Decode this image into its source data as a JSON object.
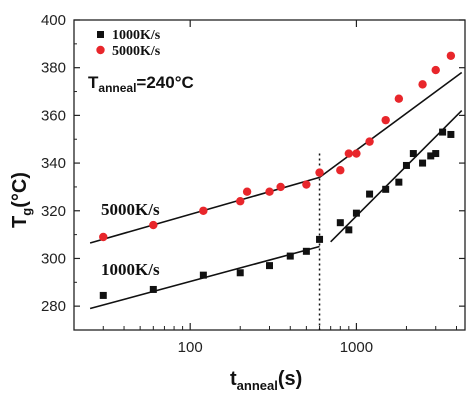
{
  "chart_data": {
    "type": "scatter",
    "x_scale": "log",
    "xlim": [
      20,
      4500
    ],
    "ylim": [
      270,
      400
    ],
    "x_ticks": [
      100,
      1000
    ],
    "x_tick_labels": [
      "100",
      "1000"
    ],
    "y_ticks": [
      280,
      300,
      320,
      340,
      360,
      380,
      400
    ],
    "y_tick_labels": [
      "280",
      "300",
      "320",
      "340",
      "360",
      "380",
      "400"
    ],
    "xlabel": {
      "main": "t",
      "sub": "anneal",
      "suffix": "(s)"
    },
    "ylabel": {
      "main": "T",
      "sub": "g",
      "suffix": "(°C)"
    },
    "legend_position": "top-left",
    "annotation_anneal": {
      "main": "T",
      "sub": "anneal",
      "suffix": "=240°C"
    },
    "vline_x": 600,
    "series": [
      {
        "name": "1000K/s",
        "label": "1000K/s",
        "color": "#111111",
        "marker": "square",
        "x": [
          30,
          60,
          120,
          200,
          300,
          400,
          500,
          600,
          800,
          900,
          1000,
          1200,
          1500,
          1800,
          2000,
          2200,
          2500,
          2800,
          3000,
          3300,
          3700
        ],
        "y": [
          284.5,
          287,
          293,
          294,
          297,
          301,
          303,
          308,
          315,
          312,
          319,
          327,
          329,
          332,
          339,
          344,
          340,
          343,
          344,
          353,
          352
        ],
        "fit_lines": [
          {
            "x": [
              25,
              600
            ],
            "y": [
              279,
              305
            ]
          },
          {
            "x": [
              700,
              4300
            ],
            "y": [
              307,
              362
            ]
          }
        ]
      },
      {
        "name": "5000K/s",
        "label": "5000K/s",
        "color": "#e8262b",
        "marker": "circle",
        "x": [
          30,
          60,
          120,
          200,
          220,
          300,
          350,
          500,
          600,
          800,
          900,
          1000,
          1200,
          1500,
          1800,
          2500,
          3000,
          3700
        ],
        "y": [
          309,
          314,
          320,
          324,
          328,
          328,
          330,
          331,
          336,
          337,
          344,
          344,
          349,
          358,
          367,
          373,
          379,
          385
        ],
        "fit_lines": [
          {
            "x": [
              25,
              600
            ],
            "y": [
              306.5,
              334
            ]
          },
          {
            "x": [
              600,
              4300
            ],
            "y": [
              334,
              378
            ]
          }
        ]
      }
    ]
  }
}
